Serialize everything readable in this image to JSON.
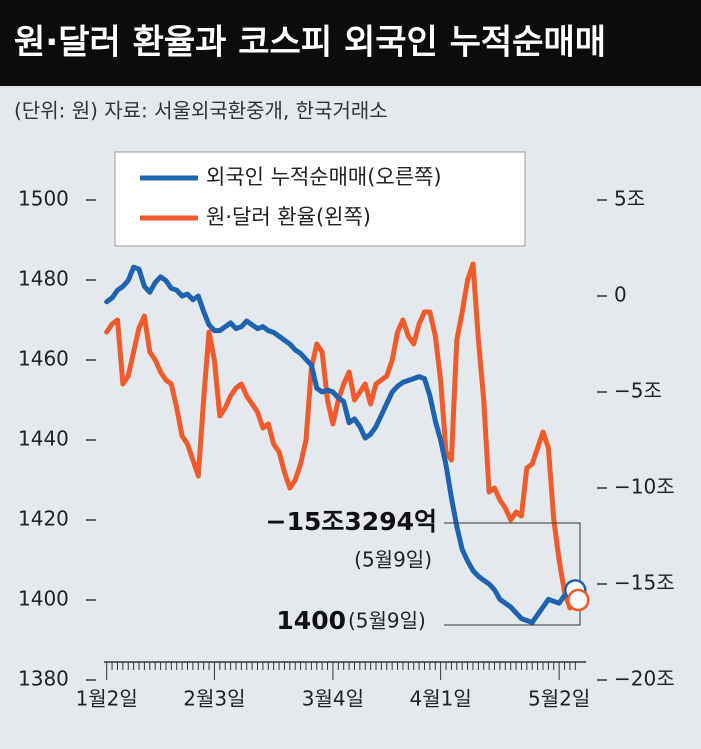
{
  "chart_data": {
    "type": "line",
    "title": "원·달러 환율과 코스피 외국인 누적순매매",
    "subtitle": "(단위: 원)  자료: 서울외국환중개, 한국거래소",
    "categories": [
      "1월2일",
      null,
      null,
      null,
      null,
      null,
      null,
      null,
      null,
      null,
      null,
      null,
      null,
      null,
      null,
      null,
      null,
      null,
      null,
      null,
      "2월3일",
      null,
      null,
      null,
      null,
      null,
      null,
      null,
      null,
      null,
      null,
      null,
      null,
      null,
      null,
      null,
      null,
      null,
      null,
      null,
      null,
      null,
      "3월4일",
      null,
      null,
      null,
      null,
      null,
      null,
      null,
      null,
      null,
      null,
      null,
      null,
      null,
      null,
      null,
      null,
      null,
      null,
      null,
      "4월1일",
      null,
      null,
      null,
      null,
      null,
      null,
      null,
      null,
      null,
      null,
      null,
      null,
      null,
      null,
      null,
      null,
      null,
      null,
      null,
      null,
      null,
      "5월2일",
      null,
      null,
      null
    ],
    "series": [
      {
        "name": "외국인 누적순매매(오른쪽)",
        "color": "#1f62b0",
        "axis": "y2",
        "values": [
          -0.3,
          -0.1,
          0.3,
          0.5,
          0.8,
          1.5,
          1.4,
          0.5,
          0.2,
          0.7,
          1.0,
          0.8,
          0.4,
          0.3,
          0.0,
          0.1,
          -0.2,
          0.0,
          -0.8,
          -1.5,
          -1.8,
          -1.8,
          -1.6,
          -1.4,
          -1.7,
          -1.6,
          -1.3,
          -1.5,
          -1.7,
          -1.6,
          -1.8,
          -1.9,
          -2.1,
          -2.3,
          -2.5,
          -2.8,
          -3.0,
          -3.3,
          -3.6,
          -4.8,
          -5.0,
          -4.9,
          -5.0,
          -5.3,
          -5.5,
          -6.6,
          -6.4,
          -6.8,
          -7.4,
          -7.2,
          -6.8,
          -6.2,
          -5.6,
          -5.0,
          -4.7,
          -4.5,
          -4.4,
          -4.3,
          -4.2,
          -4.3,
          -5.2,
          -6.5,
          -7.5,
          -8.8,
          -10.5,
          -12.0,
          -13.2,
          -13.8,
          -14.3,
          -14.6,
          -14.8,
          -15.0,
          -15.3,
          -15.8,
          -16.0,
          -16.2,
          -16.5,
          -16.8,
          -16.9,
          -17.0,
          -16.6,
          -16.2,
          -15.8,
          -15.9,
          -16.0,
          -15.6,
          -15.5,
          -15.3294
        ]
      },
      {
        "name": "원·달러 환율(왼쪽)",
        "color": "#f15a2b",
        "values": [
          1467,
          1469,
          1470,
          1454,
          1456,
          1462,
          1468,
          1471,
          1462,
          1460,
          1457,
          1455,
          1454,
          1448,
          1441,
          1439,
          1435,
          1431,
          1450,
          1467,
          1460,
          1446,
          1448,
          1451,
          1453,
          1454,
          1451,
          1449,
          1447,
          1443,
          1444,
          1439,
          1437,
          1432,
          1428,
          1430,
          1434,
          1440,
          1458,
          1464,
          1462,
          1450,
          1444,
          1450,
          1454,
          1457,
          1450,
          1452,
          1454,
          1449,
          1454,
          1455,
          1456,
          1460,
          1467,
          1470,
          1466,
          1464,
          1469,
          1472,
          1472,
          1466,
          1455,
          1437,
          1435,
          1465,
          1472,
          1480,
          1484,
          1465,
          1450,
          1427,
          1428,
          1425,
          1423,
          1420,
          1422,
          1421,
          1433,
          1434,
          1438,
          1442,
          1438,
          1420,
          1410,
          1402,
          1398,
          1400
        ]
      }
    ],
    "ylim": [
      1380,
      1500
    ],
    "yticks": [
      1380,
      1400,
      1420,
      1440,
      1460,
      1480,
      1500
    ],
    "y2lim": [
      -20,
      5
    ],
    "y2ticks": [
      {
        "value": 5,
        "label": "5조"
      },
      0,
      {
        "value": -5,
        "label": "−5조"
      },
      {
        "value": -10,
        "label": "−10조"
      },
      {
        "value": -15,
        "label": "−15조"
      },
      {
        "value": -20,
        "label": "−20조"
      }
    ],
    "annotations": [
      {
        "label": "−15조3294억",
        "date": "(5월9일)"
      },
      {
        "label": "1400",
        "date": "(5월9일)"
      }
    ]
  }
}
